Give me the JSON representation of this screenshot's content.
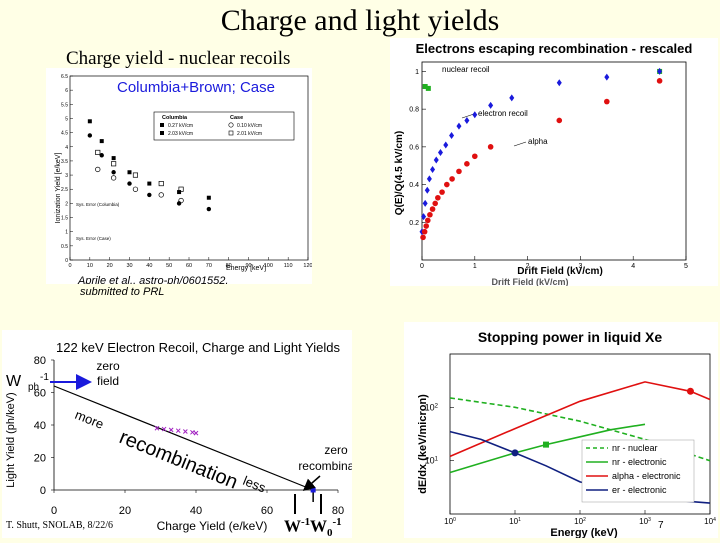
{
  "slide": {
    "title": "Charge and light yields",
    "footer": "T. Shutt, SNOLAB, 8/22/6",
    "page_number": "7"
  },
  "panel_ionization": {
    "heading": "Charge yield - nuclear recoils",
    "subheading": "Columbia+Brown; Case",
    "citation_line1": "Aprile et al., astro-ph/0601552,",
    "citation_line2": "submitted to PRL",
    "legend_columbia": "Columbia",
    "legend_case": "Case",
    "legend_c1": "0.27 kV/cm",
    "legend_c2": "2.03 kV/cm",
    "legend_k1": "0.10 kV/cm",
    "legend_k2": "2.01 kV/cm",
    "note1": "Sys. Error (Columbia)",
    "note2": "Sys. Error (Case)"
  },
  "panel_escape": {
    "heading": "Electrons escaping recombination - rescaled",
    "label_nr": "nuclear recoil",
    "label_er": "electron recoil",
    "label_alpha": "alpha",
    "extra_label": "Drift Field (kV/cm)"
  },
  "panel_anticorr": {
    "overlay_zero_field_1": "zero",
    "overlay_zero_field_2": "field",
    "overlay_more": "more",
    "overlay_recombination": "recombination",
    "overlay_less": "less",
    "overlay_zero_recomb_1": "zero",
    "overlay_zero_recomb_2": "recombination",
    "w_left": "W",
    "w_left_sup": "-1",
    "w_left_sub": "ph",
    "w_bottom": "W",
    "w_bottom_sup": "-1",
    "w0_bottom": "W",
    "w0_bottom_sub": "0",
    "w0_bottom_sup": "-1"
  },
  "panel_stopping": {},
  "colors": {
    "blue": "#1a1adc",
    "red": "#e01010",
    "green": "#20b020",
    "darkblue": "#102080",
    "background": "#ffffe6"
  },
  "chart_data": [
    {
      "type": "scatter",
      "title": "",
      "xlabel": "Energy [keV]",
      "ylabel": "Ionization Yield [e/keV]",
      "xlim": [
        0,
        120
      ],
      "ylim": [
        0,
        6.5
      ],
      "xticks": [
        0,
        10,
        20,
        30,
        40,
        50,
        60,
        70,
        80,
        90,
        100,
        110,
        120
      ],
      "yticks": [
        0,
        0.5,
        1,
        1.5,
        2,
        2.5,
        3,
        3.5,
        4,
        4.5,
        5,
        5.5,
        6,
        6.5
      ],
      "series": [
        {
          "name": "0.27 kV/cm",
          "marker": "filled-circle",
          "x": [
            10,
            16,
            22,
            30,
            40,
            55,
            70
          ],
          "y": [
            4.4,
            3.7,
            3.1,
            2.7,
            2.3,
            2.0,
            1.8
          ]
        },
        {
          "name": "2.03 kV/cm",
          "marker": "filled-square",
          "x": [
            10,
            16,
            22,
            30,
            40,
            55,
            70
          ],
          "y": [
            4.9,
            4.2,
            3.6,
            3.1,
            2.7,
            2.4,
            2.2
          ]
        },
        {
          "name": "0.10 kV/cm",
          "marker": "open-circle",
          "x": [
            14,
            22,
            33,
            46,
            56
          ],
          "y": [
            3.2,
            2.9,
            2.5,
            2.3,
            2.1
          ]
        },
        {
          "name": "2.01 kV/cm",
          "marker": "open-square",
          "x": [
            14,
            22,
            33,
            46,
            56
          ],
          "y": [
            3.8,
            3.4,
            3.0,
            2.7,
            2.5
          ]
        }
      ]
    },
    {
      "type": "scatter",
      "title": "Electrons escaping recombination - rescaled",
      "xlabel": "Drift Field (kV/cm)",
      "ylabel": "Q(E)/Q(4.5 kV/cm)",
      "xlim": [
        0,
        5
      ],
      "ylim": [
        0,
        1.05
      ],
      "xticks": [
        0,
        1,
        2,
        3,
        4,
        5
      ],
      "yticks": [
        0.2,
        0.4,
        0.6,
        0.8,
        1
      ],
      "series": [
        {
          "name": "nuclear recoil",
          "marker": "square",
          "color": "#20b020",
          "x": [
            0.06,
            0.12,
            4.5
          ],
          "y": [
            0.92,
            0.91,
            1.0
          ]
        },
        {
          "name": "electron recoil",
          "marker": "diamond",
          "color": "#1a1adc",
          "x": [
            0.0,
            0.03,
            0.06,
            0.1,
            0.14,
            0.2,
            0.27,
            0.35,
            0.45,
            0.56,
            0.7,
            0.85,
            1.0,
            1.3,
            1.7,
            2.6,
            3.5,
            4.5
          ],
          "y": [
            0.15,
            0.23,
            0.3,
            0.37,
            0.43,
            0.48,
            0.53,
            0.57,
            0.61,
            0.66,
            0.71,
            0.74,
            0.77,
            0.82,
            0.86,
            0.94,
            0.97,
            1.0
          ]
        },
        {
          "name": "alpha",
          "marker": "circle",
          "color": "#e01010",
          "x": [
            0.02,
            0.05,
            0.08,
            0.11,
            0.15,
            0.2,
            0.25,
            0.3,
            0.38,
            0.47,
            0.57,
            0.7,
            0.85,
            1.0,
            1.3,
            2.6,
            3.5,
            4.5
          ],
          "y": [
            0.12,
            0.15,
            0.18,
            0.21,
            0.24,
            0.27,
            0.3,
            0.33,
            0.36,
            0.4,
            0.43,
            0.47,
            0.51,
            0.55,
            0.6,
            0.74,
            0.84,
            0.95
          ]
        }
      ]
    },
    {
      "type": "line",
      "title": "122 keV Electron Recoil, Charge and Light Yields",
      "xlabel": "Charge Yield (e/keV)",
      "ylabel": "Light Yield (ph/keV)",
      "xlim": [
        0,
        80
      ],
      "ylim": [
        0,
        80
      ],
      "xticks": [
        0,
        20,
        40,
        60,
        80
      ],
      "yticks": [
        0,
        20,
        40,
        60,
        80
      ],
      "series": [
        {
          "name": "",
          "x": [
            0,
            73
          ],
          "y": [
            64,
            0
          ]
        },
        {
          "name": "",
          "marker": "cross",
          "x": [
            29,
            31,
            33,
            35,
            37,
            39,
            40
          ],
          "y": [
            38,
            37.5,
            37,
            36.5,
            36,
            35.5,
            35
          ]
        }
      ]
    },
    {
      "type": "line",
      "title": "Stopping power in liquid Xe",
      "xlabel": "Energy (keV)",
      "ylabel": "dE/dx (keV/micron)",
      "xscale": "log",
      "yscale": "log",
      "xlim": [
        1,
        10000
      ],
      "ylim": [
        1,
        1000
      ],
      "xticks": [
        1,
        10,
        100,
        1000,
        10000
      ],
      "yticks": [
        10,
        100
      ],
      "legend_position": "center-right",
      "series": [
        {
          "name": "nr - nuclear",
          "color": "#20b020",
          "style": "dashed",
          "x": [
            1,
            10,
            100,
            1000,
            10000
          ],
          "y": [
            150,
            100,
            55,
            25,
            10
          ]
        },
        {
          "name": "nr - electronic",
          "color": "#20b020",
          "style": "solid",
          "x": [
            1,
            3,
            10,
            30,
            100,
            300,
            1000
          ],
          "y": [
            6,
            9,
            14,
            20,
            28,
            38,
            48
          ]
        },
        {
          "name": "alpha - electronic",
          "color": "#e01010",
          "style": "solid",
          "x": [
            1,
            10,
            100,
            1000,
            5000,
            10000
          ],
          "y": [
            12,
            40,
            130,
            300,
            200,
            140
          ]
        },
        {
          "name": "er - electronic",
          "color": "#102080",
          "style": "solid",
          "x": [
            1,
            3,
            10,
            30,
            100,
            1000,
            10000
          ],
          "y": [
            35,
            25,
            14,
            8,
            4,
            2,
            1.6
          ]
        }
      ]
    }
  ]
}
